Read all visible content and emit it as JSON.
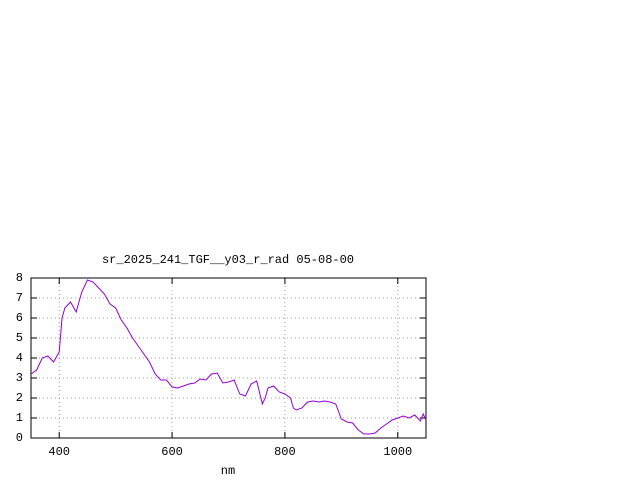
{
  "chart_data": {
    "type": "line",
    "title": "sr_2025_241_TGF__y03_r_rad 05-08-00",
    "x_label": "nm",
    "x": [
      350,
      360,
      370,
      380,
      390,
      400,
      405,
      410,
      420,
      430,
      440,
      450,
      460,
      470,
      480,
      490,
      500,
      510,
      520,
      530,
      540,
      550,
      560,
      570,
      580,
      590,
      600,
      610,
      620,
      630,
      640,
      650,
      660,
      670,
      680,
      690,
      700,
      710,
      720,
      730,
      740,
      750,
      760,
      765,
      770,
      780,
      790,
      800,
      810,
      815,
      820,
      830,
      840,
      850,
      860,
      870,
      880,
      890,
      900,
      910,
      920,
      930,
      940,
      950,
      960,
      970,
      980,
      990,
      1000,
      1010,
      1020,
      1030,
      1040,
      1045,
      1050
    ],
    "values": [
      3.2,
      3.4,
      4.0,
      4.1,
      3.8,
      4.3,
      6.0,
      6.5,
      6.8,
      6.3,
      7.3,
      7.9,
      7.8,
      7.5,
      7.2,
      6.7,
      6.5,
      5.9,
      5.5,
      5.0,
      4.6,
      4.2,
      3.8,
      3.2,
      2.9,
      2.9,
      2.55,
      2.5,
      2.6,
      2.7,
      2.75,
      2.95,
      2.9,
      3.2,
      3.25,
      2.75,
      2.8,
      2.9,
      2.2,
      2.1,
      2.7,
      2.85,
      1.7,
      2.0,
      2.5,
      2.6,
      2.3,
      2.2,
      2.0,
      1.5,
      1.4,
      1.5,
      1.8,
      1.85,
      1.8,
      1.85,
      1.8,
      1.7,
      0.95,
      0.8,
      0.75,
      0.4,
      0.2,
      0.2,
      0.25,
      0.5,
      0.7,
      0.9,
      1.0,
      1.1,
      1.0,
      1.15,
      0.85,
      1.2,
      0.9
    ],
    "color": "#9400d3",
    "xlim": [
      350,
      1050
    ],
    "xticks": [
      400,
      600,
      800,
      1000
    ],
    "ylim": [
      0,
      8
    ],
    "yticks": [
      0,
      1,
      2,
      3,
      4,
      5,
      6,
      7,
      8
    ],
    "grid": true
  }
}
